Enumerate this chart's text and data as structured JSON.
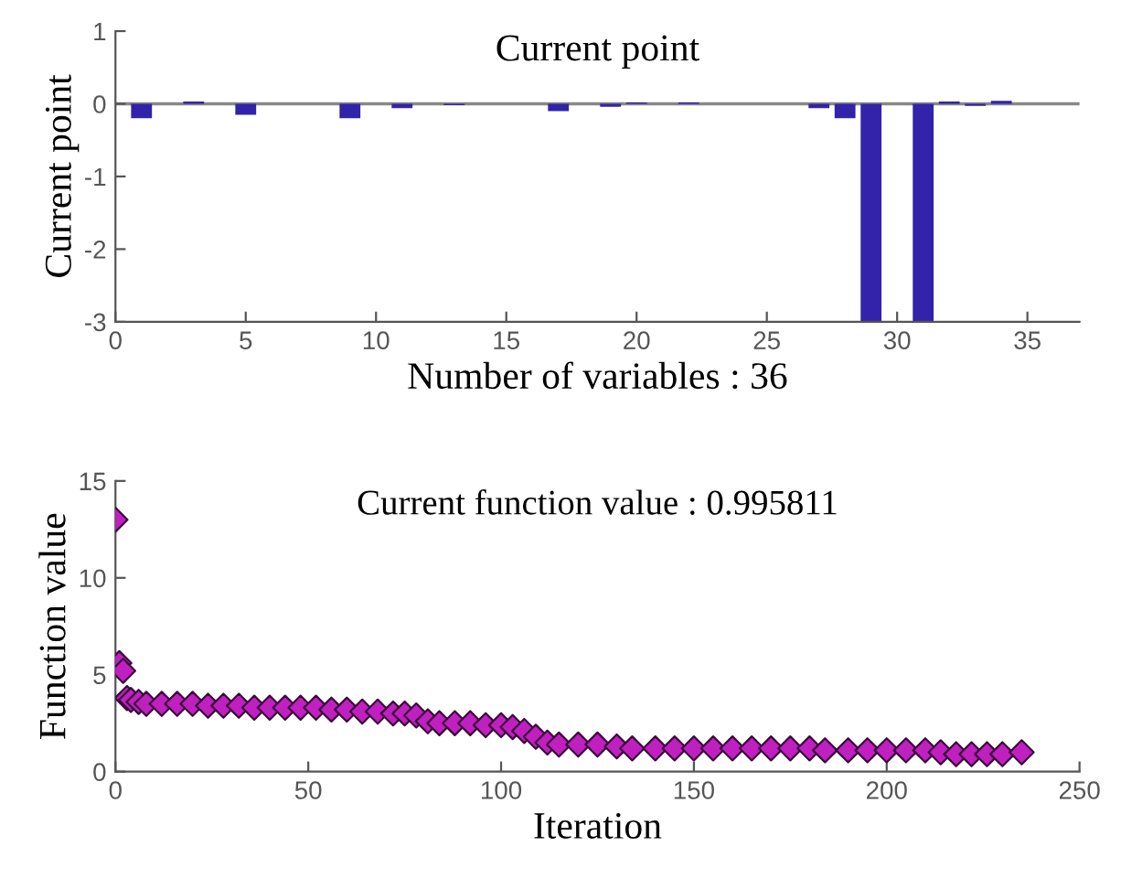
{
  "chart_data": [
    {
      "type": "bar",
      "title": "Current point",
      "xlabel": "Number of variables : 36",
      "ylabel": "Current point",
      "x": [
        1,
        2,
        3,
        4,
        5,
        6,
        7,
        8,
        9,
        10,
        11,
        12,
        13,
        14,
        15,
        16,
        17,
        18,
        19,
        20,
        21,
        22,
        23,
        24,
        25,
        26,
        27,
        28,
        29,
        30,
        31,
        32,
        33,
        34,
        35,
        36
      ],
      "values": [
        -0.2,
        0,
        0.03,
        null,
        -0.15,
        null,
        0,
        0,
        -0.2,
        0,
        -0.06,
        0,
        -0.02,
        0,
        0,
        0,
        -0.1,
        0,
        -0.04,
        0.02,
        0,
        0.02,
        0,
        0,
        null,
        0,
        -0.06,
        -0.2,
        -3,
        0,
        -3,
        0.03,
        -0.03,
        0.04,
        null,
        0
      ],
      "color": "#3322aa",
      "xlim": [
        0,
        37
      ],
      "xticks": [
        0,
        5,
        10,
        15,
        20,
        25,
        30,
        35
      ],
      "ylim": [
        -3,
        1
      ],
      "yticks": [
        -3,
        -2,
        -1,
        0,
        1
      ],
      "ref_lines": [
        {
          "axis": "y",
          "value": 0,
          "color": "#888888"
        }
      ],
      "grid": false,
      "legend": false
    },
    {
      "type": "scatter",
      "title": "Current function value : 0.995811",
      "xlabel": "Iteration",
      "ylabel": "Function value",
      "x": [
        0,
        1,
        2,
        3,
        4,
        6,
        8,
        12,
        16,
        20,
        24,
        28,
        32,
        36,
        40,
        44,
        48,
        52,
        56,
        60,
        64,
        68,
        72,
        75,
        78,
        81,
        84,
        88,
        92,
        96,
        100,
        103,
        106,
        109,
        112,
        115,
        120,
        125,
        130,
        134,
        140,
        145,
        150,
        155,
        160,
        165,
        170,
        175,
        180,
        184,
        190,
        195,
        200,
        205,
        210,
        214,
        218,
        222,
        226,
        230,
        235
      ],
      "values": [
        13,
        5.6,
        5.2,
        3.8,
        3.7,
        3.6,
        3.5,
        3.5,
        3.5,
        3.5,
        3.4,
        3.4,
        3.4,
        3.3,
        3.3,
        3.3,
        3.3,
        3.3,
        3.2,
        3.2,
        3.1,
        3.1,
        3.0,
        3.0,
        2.9,
        2.6,
        2.5,
        2.5,
        2.5,
        2.4,
        2.4,
        2.3,
        2.1,
        1.8,
        1.5,
        1.4,
        1.4,
        1.4,
        1.3,
        1.2,
        1.2,
        1.2,
        1.2,
        1.2,
        1.2,
        1.2,
        1.2,
        1.2,
        1.2,
        1.1,
        1.1,
        1.1,
        1.1,
        1.1,
        1.1,
        1.0,
        0.9,
        0.9,
        0.9,
        0.9,
        1.0
      ],
      "color": "#c020c0",
      "marker": "diamond",
      "xlim": [
        0,
        250
      ],
      "xticks": [
        0,
        50,
        100,
        150,
        200,
        250
      ],
      "ylim": [
        0,
        15
      ],
      "yticks": [
        0,
        5,
        10,
        15
      ],
      "grid": false,
      "legend": false
    }
  ]
}
